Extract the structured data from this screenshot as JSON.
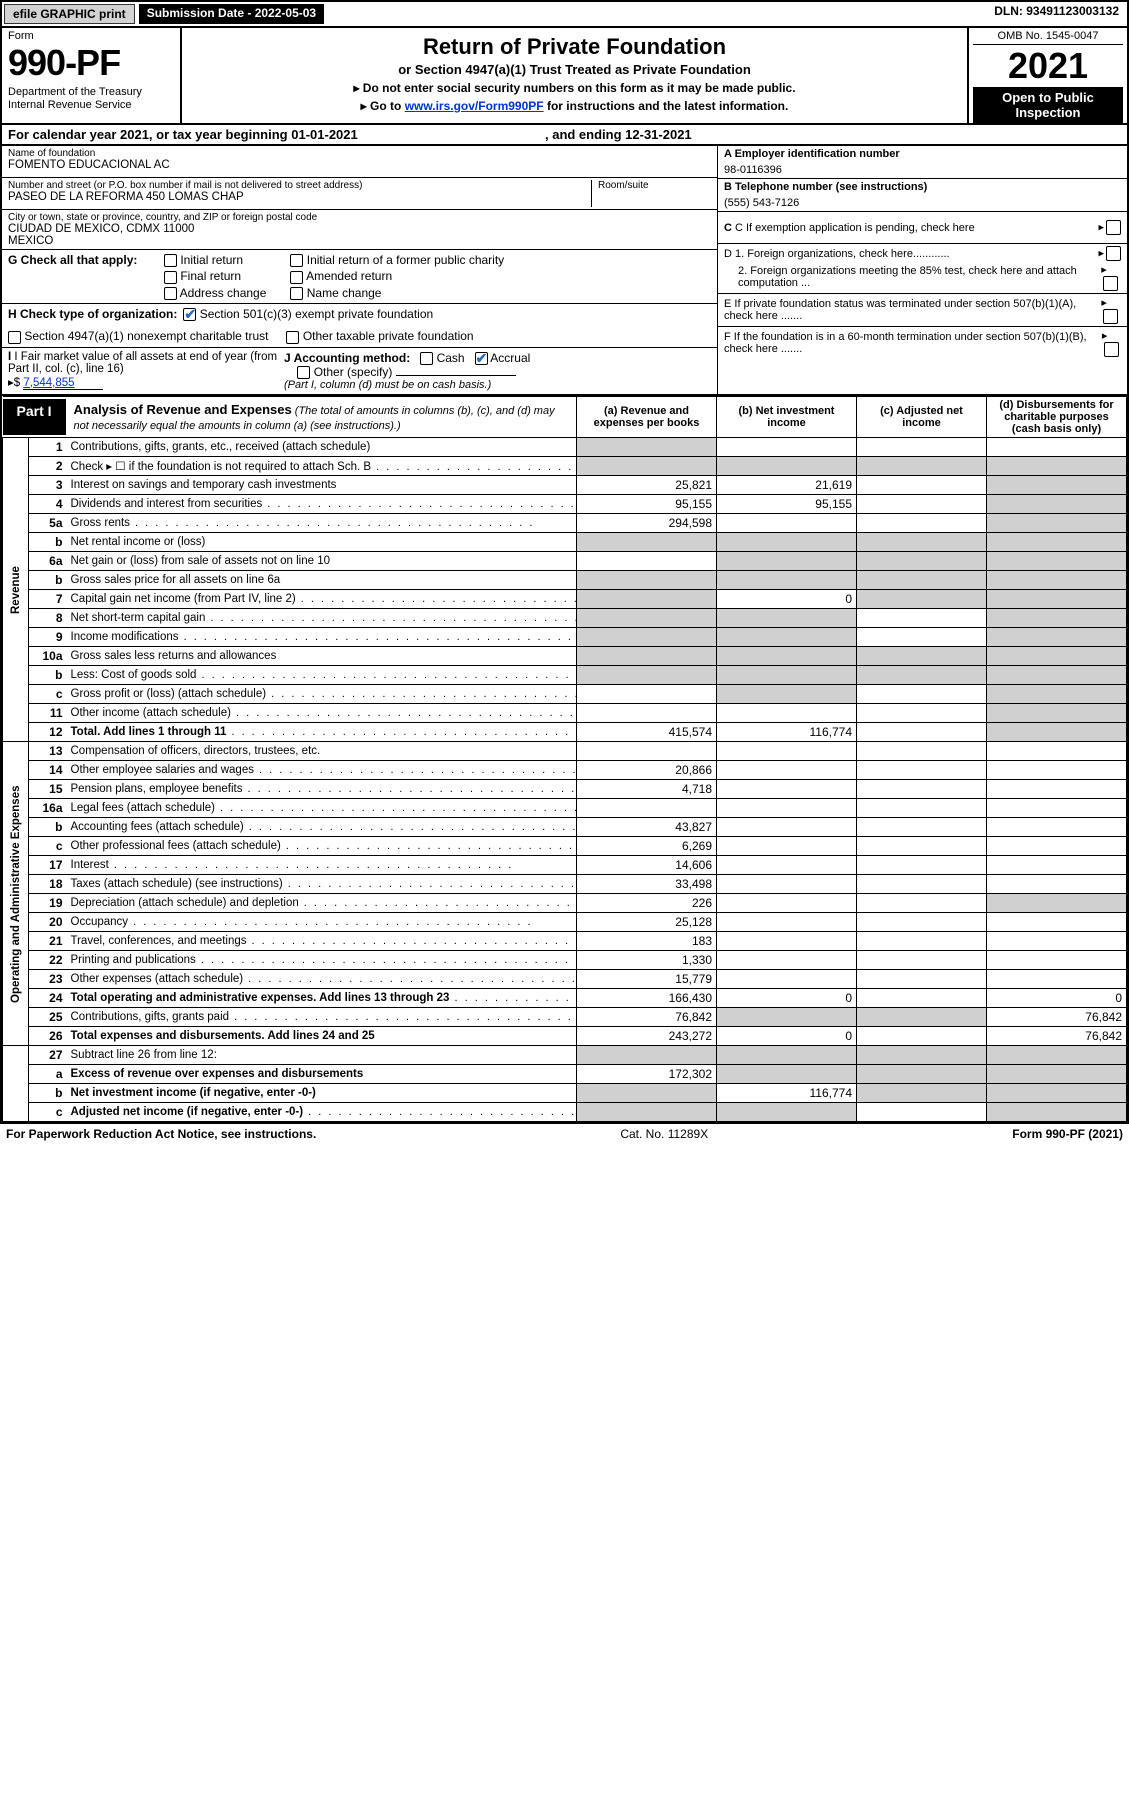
{
  "colors": {
    "black": "#000000",
    "grey": "#d0d0d0",
    "btn_bg": "#d3d3d3",
    "link": "#0033cc",
    "check_blue": "#2a6ab8"
  },
  "top": {
    "efile": "efile GRAPHIC print",
    "submission": "Submission Date - 2022-05-03",
    "dln": "DLN: 93491123003132"
  },
  "header": {
    "form_label": "Form",
    "form_num": "990-PF",
    "dept": "Department of the Treasury\nInternal Revenue Service",
    "title": "Return of Private Foundation",
    "subtitle": "or Section 4947(a)(1) Trust Treated as Private Foundation",
    "instr1": "▸ Do not enter social security numbers on this form as it may be made public.",
    "instr2_pre": "▸ Go to ",
    "instr2_link": "www.irs.gov/Form990PF",
    "instr2_post": " for instructions and the latest information.",
    "omb": "OMB No. 1545-0047",
    "year": "2021",
    "open": "Open to Public Inspection"
  },
  "cal": {
    "line_pre": "For calendar year 2021, or tax year beginning ",
    "begin": "01-01-2021",
    "mid": " , and ending ",
    "end": "12-31-2021"
  },
  "foundation": {
    "name_label": "Name of foundation",
    "name": "FOMENTO EDUCACIONAL AC",
    "addr_label": "Number and street (or P.O. box number if mail is not delivered to street address)",
    "addr": "PASEO DE LA REFORMA 450 LOMAS CHAP",
    "room_label": "Room/suite",
    "room": "",
    "city_label": "City or town, state or province, country, and ZIP or foreign postal code",
    "city": "CIUDAD DE MEXICO, CDMX  11000\nMexico"
  },
  "right_info": {
    "A_label": "A Employer identification number",
    "A_value": "98-0116396",
    "B_label": "B Telephone number (see instructions)",
    "B_value": "(555) 543-7126",
    "C_label": "C If exemption application is pending, check here",
    "D1": "D 1. Foreign organizations, check here............",
    "D2": "2. Foreign organizations meeting the 85% test, check here and attach computation ...",
    "E": "E  If private foundation status was terminated under section 507(b)(1)(A), check here .......",
    "F": "F  If the foundation is in a 60-month termination under section 507(b)(1)(B), check here ......."
  },
  "checks": {
    "G_label": "G Check all that apply:",
    "G_opts": [
      "Initial return",
      "Initial return of a former public charity",
      "Final return",
      "Amended return",
      "Address change",
      "Name change"
    ],
    "H_label": "H Check type of organization:",
    "H_501c3": "Section 501(c)(3) exempt private foundation",
    "H_4947": "Section 4947(a)(1) nonexempt charitable trust",
    "H_other": "Other taxable private foundation",
    "I_label": "I Fair market value of all assets at end of year (from Part II, col. (c), line 16)",
    "I_value": "7,544,855",
    "I_arrow": "▸$",
    "J_label": "J Accounting method:",
    "J_cash": "Cash",
    "J_accrual": "Accrual",
    "J_other": "Other (specify)",
    "J_note": "(Part I, column (d) must be on cash basis.)"
  },
  "part1": {
    "badge": "Part I",
    "title": "Analysis of Revenue and Expenses",
    "note": " (The total of amounts in columns (b), (c), and (d) may not necessarily equal the amounts in column (a) (see instructions).)",
    "col_a": "(a)   Revenue and expenses per books",
    "col_b": "(b)   Net investment income",
    "col_c": "(c)   Adjusted net income",
    "col_d": "(d)   Disbursements for charitable purposes (cash basis only)"
  },
  "side": {
    "rev": "Revenue",
    "exp": "Operating and Administrative Expenses"
  },
  "rows": [
    {
      "n": "1",
      "lbl": "Contributions, gifts, grants, etc., received (attach schedule)",
      "a": "",
      "b": "",
      "c": "",
      "d": "",
      "acell": "grey"
    },
    {
      "n": "2",
      "lbl": "Check ▸ ☐ if the foundation is not required to attach Sch. B",
      "dots": true,
      "a": "",
      "b": "",
      "c": "",
      "d": "",
      "acell": "grey",
      "bcell": "grey",
      "ccell": "grey",
      "dcell": "grey"
    },
    {
      "n": "3",
      "lbl": "Interest on savings and temporary cash investments",
      "a": "25,821",
      "b": "21,619",
      "c": "",
      "d": "",
      "dcell": "grey"
    },
    {
      "n": "4",
      "lbl": "Dividends and interest from securities",
      "dots": true,
      "a": "95,155",
      "b": "95,155",
      "c": "",
      "d": "",
      "dcell": "grey"
    },
    {
      "n": "5a",
      "lbl": "Gross rents",
      "dots": true,
      "a": "294,598",
      "b": "",
      "c": "",
      "d": "",
      "dcell": "grey"
    },
    {
      "n": "b",
      "lbl": "Net rental income or (loss)",
      "a": "",
      "b": "",
      "c": "",
      "d": "",
      "acell": "grey",
      "bcell": "grey",
      "ccell": "grey",
      "dcell": "grey",
      "inset": true
    },
    {
      "n": "6a",
      "lbl": "Net gain or (loss) from sale of assets not on line 10",
      "a": "",
      "b": "",
      "c": "",
      "d": "",
      "bcell": "grey",
      "ccell": "grey",
      "dcell": "grey"
    },
    {
      "n": "b",
      "lbl": "Gross sales price for all assets on line 6a",
      "a": "",
      "b": "",
      "c": "",
      "d": "",
      "acell": "grey",
      "bcell": "grey",
      "ccell": "grey",
      "dcell": "grey",
      "inset": true
    },
    {
      "n": "7",
      "lbl": "Capital gain net income (from Part IV, line 2)",
      "dots": true,
      "a": "",
      "b": "0",
      "c": "",
      "d": "",
      "acell": "grey",
      "ccell": "grey",
      "dcell": "grey"
    },
    {
      "n": "8",
      "lbl": "Net short-term capital gain",
      "dots": true,
      "a": "",
      "b": "",
      "c": "",
      "d": "",
      "acell": "grey",
      "bcell": "grey",
      "dcell": "grey"
    },
    {
      "n": "9",
      "lbl": "Income modifications",
      "dots": true,
      "a": "",
      "b": "",
      "c": "",
      "d": "",
      "acell": "grey",
      "bcell": "grey",
      "dcell": "grey"
    },
    {
      "n": "10a",
      "lbl": "Gross sales less returns and allowances",
      "a": "",
      "b": "",
      "c": "",
      "d": "",
      "acell": "grey",
      "bcell": "grey",
      "ccell": "grey",
      "dcell": "grey",
      "inset": true
    },
    {
      "n": "b",
      "lbl": "Less: Cost of goods sold",
      "dots": true,
      "a": "",
      "b": "",
      "c": "",
      "d": "",
      "acell": "grey",
      "bcell": "grey",
      "ccell": "grey",
      "dcell": "grey",
      "inset": true
    },
    {
      "n": "c",
      "lbl": "Gross profit or (loss) (attach schedule)",
      "dots": true,
      "a": "",
      "b": "",
      "c": "",
      "d": "",
      "bcell": "grey",
      "dcell": "grey"
    },
    {
      "n": "11",
      "lbl": "Other income (attach schedule)",
      "dots": true,
      "a": "",
      "b": "",
      "c": "",
      "d": "",
      "dcell": "grey"
    },
    {
      "n": "12",
      "lbl": "Total. Add lines 1 through 11",
      "dots": true,
      "bold": true,
      "a": "415,574",
      "b": "116,774",
      "c": "",
      "d": "",
      "dcell": "grey"
    }
  ],
  "exp_rows": [
    {
      "n": "13",
      "lbl": "Compensation of officers, directors, trustees, etc."
    },
    {
      "n": "14",
      "lbl": "Other employee salaries and wages",
      "dots": true,
      "a": "20,866"
    },
    {
      "n": "15",
      "lbl": "Pension plans, employee benefits",
      "dots": true,
      "a": "4,718"
    },
    {
      "n": "16a",
      "lbl": "Legal fees (attach schedule)",
      "dots": true
    },
    {
      "n": "b",
      "lbl": "Accounting fees (attach schedule)",
      "dots": true,
      "a": "43,827"
    },
    {
      "n": "c",
      "lbl": "Other professional fees (attach schedule)",
      "dots": true,
      "a": "6,269"
    },
    {
      "n": "17",
      "lbl": "Interest",
      "dots": true,
      "a": "14,606"
    },
    {
      "n": "18",
      "lbl": "Taxes (attach schedule) (see instructions)",
      "dots": true,
      "a": "33,498"
    },
    {
      "n": "19",
      "lbl": "Depreciation (attach schedule) and depletion",
      "dots": true,
      "a": "226",
      "dcell": "grey"
    },
    {
      "n": "20",
      "lbl": "Occupancy",
      "dots": true,
      "a": "25,128"
    },
    {
      "n": "21",
      "lbl": "Travel, conferences, and meetings",
      "dots": true,
      "a": "183"
    },
    {
      "n": "22",
      "lbl": "Printing and publications",
      "dots": true,
      "a": "1,330"
    },
    {
      "n": "23",
      "lbl": "Other expenses (attach schedule)",
      "dots": true,
      "a": "15,779"
    },
    {
      "n": "24",
      "lbl": "Total operating and administrative expenses. Add lines 13 through 23",
      "dots": true,
      "bold": true,
      "a": "166,430",
      "b": "0",
      "c": "",
      "d": "0"
    },
    {
      "n": "25",
      "lbl": "Contributions, gifts, grants paid",
      "dots": true,
      "a": "76,842",
      "bcell": "grey",
      "ccell": "grey",
      "d": "76,842"
    },
    {
      "n": "26",
      "lbl": "Total expenses and disbursements. Add lines 24 and 25",
      "bold": true,
      "a": "243,272",
      "b": "0",
      "c": "",
      "d": "76,842"
    }
  ],
  "final_rows": [
    {
      "n": "27",
      "lbl": "Subtract line 26 from line 12:",
      "a": "",
      "b": "",
      "c": "",
      "d": "",
      "acell": "grey",
      "bcell": "grey",
      "ccell": "grey",
      "dcell": "grey"
    },
    {
      "n": "a",
      "lbl": "Excess of revenue over expenses and disbursements",
      "bold": true,
      "a": "172,302",
      "bcell": "grey",
      "ccell": "grey",
      "dcell": "grey"
    },
    {
      "n": "b",
      "lbl": "Net investment income (if negative, enter -0-)",
      "bold": true,
      "acell": "grey",
      "b": "116,774",
      "ccell": "grey",
      "dcell": "grey"
    },
    {
      "n": "c",
      "lbl": "Adjusted net income (if negative, enter -0-)",
      "bold": true,
      "dots": true,
      "acell": "grey",
      "bcell": "grey",
      "c": "",
      "dcell": "grey"
    }
  ],
  "footer": {
    "left": "For Paperwork Reduction Act Notice, see instructions.",
    "mid": "Cat. No. 11289X",
    "right": "Form 990-PF (2021)"
  }
}
